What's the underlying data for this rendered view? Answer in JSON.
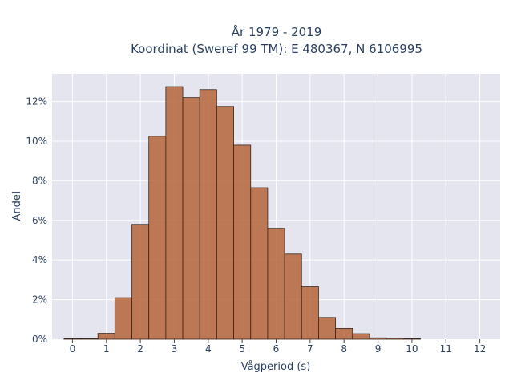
{
  "chart_data": {
    "type": "bar",
    "title_line1": "År 1979 - 2019",
    "title_line2": "Koordinat (Sweref 99 TM): E 480367, N 6106995",
    "xlabel": "Vågperiod (s)",
    "ylabel": "Andel",
    "bin_width": 0.5,
    "bins": [
      {
        "x": 0.0,
        "value": 0.03
      },
      {
        "x": 0.5,
        "value": 0.0
      },
      {
        "x": 1.0,
        "value": 0.3
      },
      {
        "x": 1.5,
        "value": 2.1
      },
      {
        "x": 2.0,
        "value": 5.8
      },
      {
        "x": 2.5,
        "value": 10.25
      },
      {
        "x": 3.0,
        "value": 12.75
      },
      {
        "x": 3.5,
        "value": 12.2
      },
      {
        "x": 4.0,
        "value": 12.6
      },
      {
        "x": 4.5,
        "value": 11.75
      },
      {
        "x": 5.0,
        "value": 9.8
      },
      {
        "x": 5.5,
        "value": 7.65
      },
      {
        "x": 6.0,
        "value": 5.6
      },
      {
        "x": 6.5,
        "value": 4.3
      },
      {
        "x": 7.0,
        "value": 2.65
      },
      {
        "x": 7.5,
        "value": 1.1
      },
      {
        "x": 8.0,
        "value": 0.55
      },
      {
        "x": 8.5,
        "value": 0.28
      },
      {
        "x": 9.0,
        "value": 0.07
      },
      {
        "x": 9.5,
        "value": 0.05
      },
      {
        "x": 10.0,
        "value": 0.02
      }
    ],
    "xlim": [
      -0.6,
      12.6
    ],
    "ylim": [
      0,
      13.4
    ],
    "xticks": [
      "0",
      "1",
      "2",
      "3",
      "4",
      "5",
      "6",
      "7",
      "8",
      "9",
      "10",
      "11",
      "12"
    ],
    "yticks": [
      "0%",
      "2%",
      "4%",
      "6%",
      "8%",
      "10%",
      "12%"
    ],
    "plot_bg": "#e5e5ef",
    "bar_color": "#b5653a",
    "grid": true
  }
}
